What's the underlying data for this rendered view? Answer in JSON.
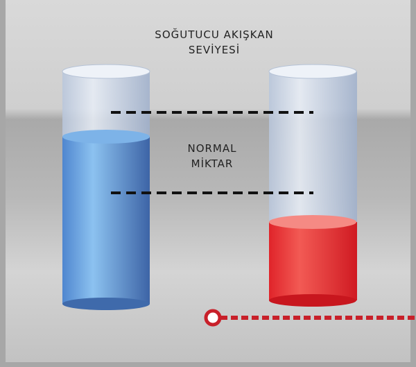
{
  "title": {
    "lines": [
      "SOĞUTUCU AKIŞKAN",
      "SEVİYESİ"
    ]
  },
  "range_label": {
    "lines": [
      "NORMAL",
      "MİKTAR"
    ]
  }
}
